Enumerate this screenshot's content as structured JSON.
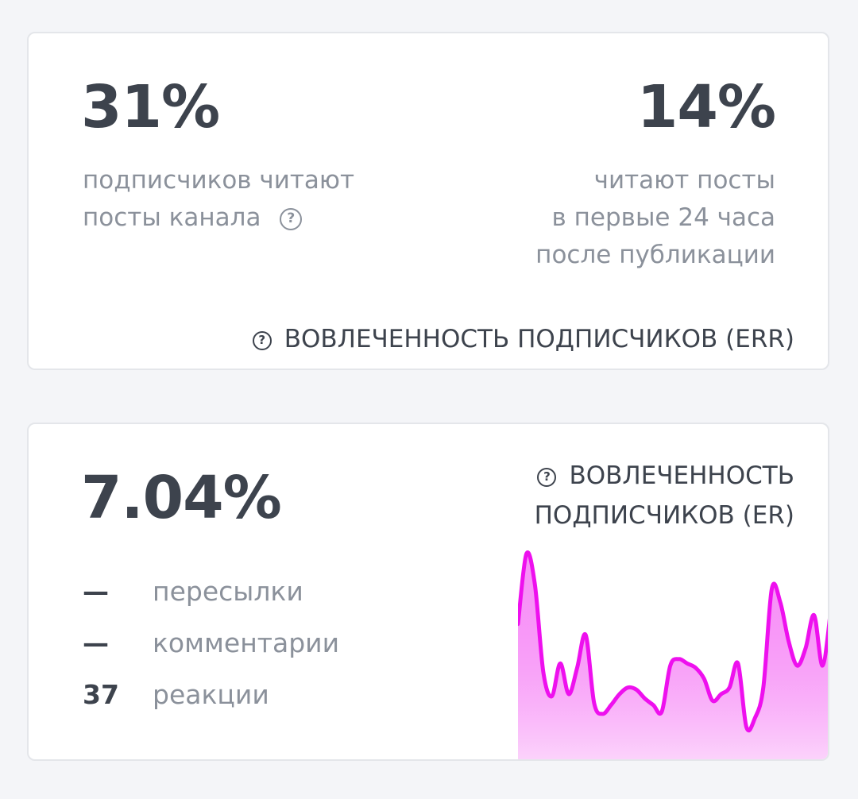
{
  "err_card": {
    "left_value": "31%",
    "left_desc_line1": "подписчиков читают",
    "left_desc_line2": "посты канала",
    "right_value": "14%",
    "right_desc_line1": "читают посты",
    "right_desc_line2": "в первые 24 часа",
    "right_desc_line3": "после публикации",
    "footer_label": "ВОВЛЕЧЕННОСТЬ ПОДПИСЧИКОВ (ERR)",
    "help_icon": "question-circle-icon"
  },
  "er_card": {
    "value": "7.04%",
    "title_line1": "ВОВЛЕЧЕННОСТЬ",
    "title_line2": "ПОДПИСЧИКОВ (ER)",
    "help_icon": "question-circle-icon",
    "metrics": [
      {
        "value": "—",
        "name": "пересылки"
      },
      {
        "value": "—",
        "name": "комментарии"
      },
      {
        "value": "37",
        "name": "реакции"
      }
    ]
  },
  "colors": {
    "accent_line": "#ee10ee",
    "accent_fill": "#fbd0fb",
    "text_dark": "#3d434d",
    "text_muted": "#8b919b"
  },
  "chart_data": {
    "type": "area",
    "title": "",
    "xlabel": "",
    "ylabel": "",
    "ylim": [
      0,
      100
    ],
    "grid": false,
    "values": [
      61,
      93,
      79,
      39,
      28,
      43,
      29,
      41,
      56,
      25,
      20,
      24,
      29,
      32,
      31,
      27,
      24,
      21,
      42,
      45,
      43,
      41,
      36,
      26,
      29,
      32,
      43,
      14,
      18,
      32,
      77,
      71,
      53,
      42,
      50,
      65,
      42,
      68
    ]
  }
}
